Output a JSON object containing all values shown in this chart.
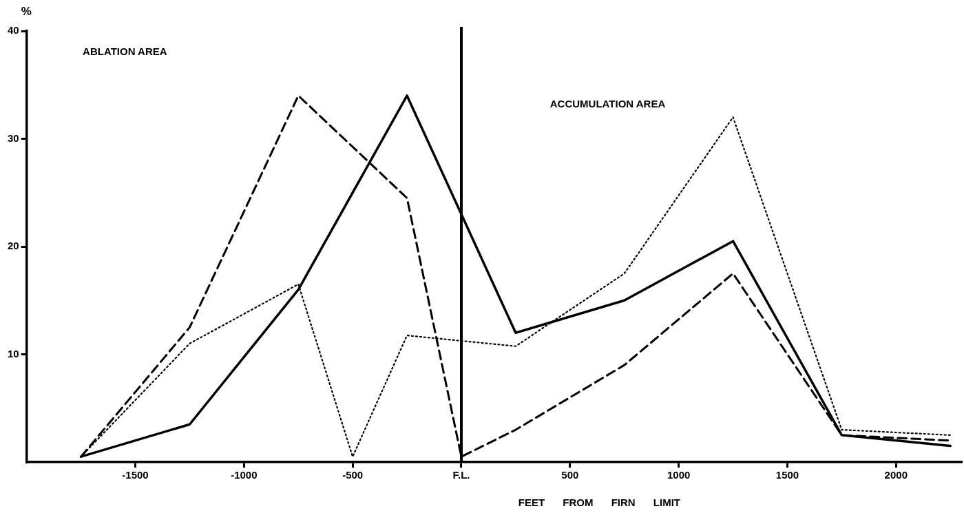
{
  "chart_data": {
    "type": "line",
    "xlabel": "FEET FROM FIRN LIMIT",
    "ylabel": "%",
    "xlim": [
      -2000,
      2300
    ],
    "xticks": [
      -1500,
      -1000,
      -500,
      {
        "value": 0,
        "label": "F.L."
      },
      500,
      1000,
      1500,
      2000
    ],
    "ylim": [
      0,
      40
    ],
    "yticks": [
      10,
      20,
      30,
      40
    ],
    "grid": false,
    "legend": false,
    "marker": "none",
    "annotations": [
      "ABLATION AREA",
      "ACCUMULATION AREA"
    ],
    "ref_lines": [
      {
        "axis": "x",
        "value": 0,
        "color": "#000000"
      }
    ],
    "series": [
      {
        "color": "#000000",
        "line_style": "solid",
        "x": [
          -1750,
          -1250,
          -750,
          -250,
          250,
          750,
          1250,
          1750,
          2250
        ],
        "values": [
          0.5,
          3.5,
          16,
          34,
          12,
          15,
          20.5,
          2.5,
          1.5
        ]
      },
      {
        "color": "#000000",
        "line_style": "dashed",
        "x": [
          -1750,
          -1250,
          -750,
          -250,
          0,
          250,
          750,
          1250,
          1750,
          2250
        ],
        "values": [
          0.5,
          12.5,
          34,
          24.5,
          0.5,
          3,
          9,
          17.5,
          2.5,
          2
        ]
      },
      {
        "color": "#000000",
        "line_style": "dotted",
        "x": [
          -1750,
          -1250,
          -750,
          -500,
          -250,
          250,
          750,
          1250,
          1750,
          2250
        ],
        "values": [
          0.5,
          11,
          16.5,
          0.5,
          11.75,
          10.75,
          17.5,
          32,
          3,
          2.5
        ]
      }
    ]
  }
}
